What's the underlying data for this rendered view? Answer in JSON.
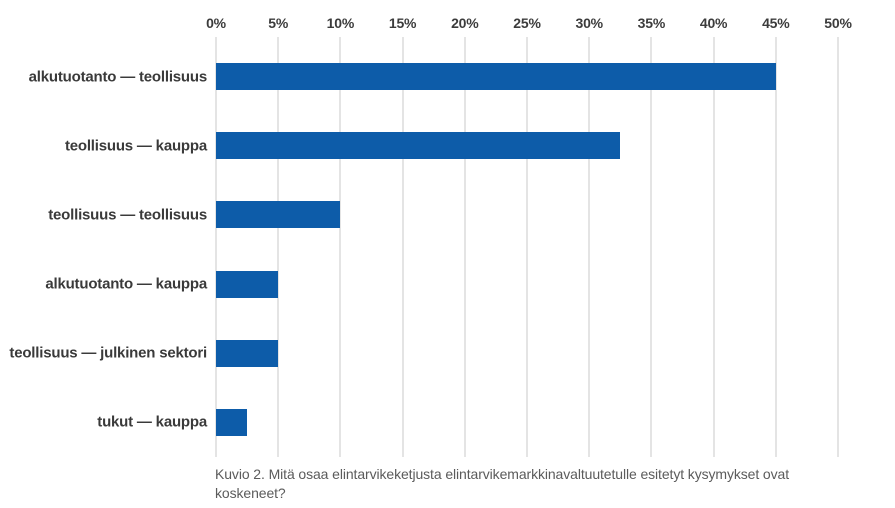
{
  "chart_data": {
    "type": "bar",
    "orientation": "horizontal",
    "categories": [
      "alkutuotanto — teollisuus",
      "teollisuus — kauppa",
      "teollisuus — teollisuus",
      "alkutuotanto — kauppa",
      "teollisuus — julkinen sektori",
      "tukut — kauppa"
    ],
    "values": [
      45,
      32.5,
      10,
      5,
      5,
      2.5
    ],
    "unit": "%",
    "xlim": [
      0,
      50
    ],
    "x_tick_values": [
      0,
      5,
      10,
      15,
      20,
      25,
      30,
      35,
      40,
      45,
      50
    ],
    "x_tick_labels": [
      "0%",
      "5%",
      "10%",
      "15%",
      "20%",
      "25%",
      "30%",
      "35%",
      "40%",
      "45%",
      "50%"
    ],
    "axis_position": "top",
    "grid": true,
    "legend": false,
    "bar_color": "#0d5ca9",
    "gridline_color": "#e4e4e4",
    "caption": "Kuvio 2. Mitä osaa elintarvikeketjusta elintarvikemarkkinavaltuutetulle esitetyt kysymykset ovat koskeneet?"
  }
}
